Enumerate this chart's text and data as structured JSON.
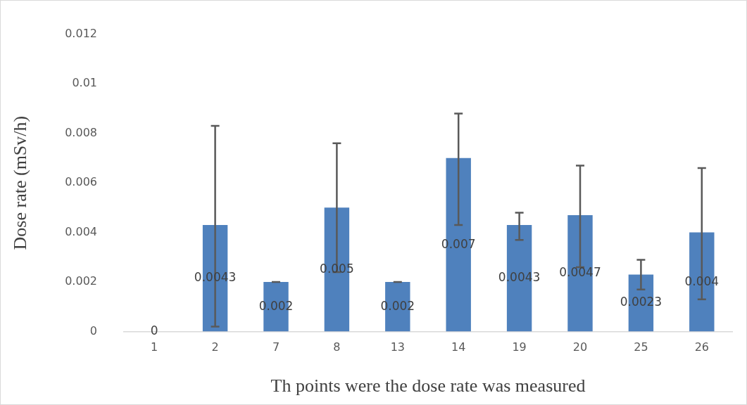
{
  "chart_data": {
    "type": "bar",
    "xlabel": "Th points were the dose rate was measured",
    "ylabel": "Dose rate (mSv/h)",
    "categories": [
      "1",
      "2",
      "7",
      "8",
      "13",
      "14",
      "19",
      "20",
      "25",
      "26"
    ],
    "values": [
      0,
      0.0043,
      0.002,
      0.005,
      0.002,
      0.007,
      0.0043,
      0.0047,
      0.0023,
      0.004
    ],
    "errors": [
      null,
      [
        0.0002,
        0.0083
      ],
      0,
      [
        0.0024,
        0.0076
      ],
      0,
      [
        0.0043,
        0.0088
      ],
      [
        0.0037,
        0.0048
      ],
      [
        0.0026,
        0.0067
      ],
      [
        0.0017,
        0.0029
      ],
      [
        0.0013,
        0.0066
      ]
    ],
    "color": "#4f81bd",
    "ylim": [
      0,
      0.012
    ],
    "yticks": [
      0,
      0.002,
      0.004,
      0.006,
      0.008,
      0.01,
      0.012
    ],
    "data_labels": true,
    "grid": false,
    "legend": false
  }
}
